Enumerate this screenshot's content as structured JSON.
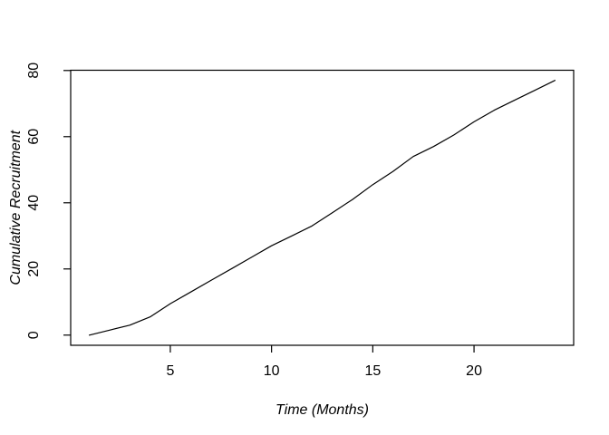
{
  "chart_data": {
    "type": "line",
    "title": "",
    "xlabel": "Time (Months)",
    "ylabel": "Cumulative Recruitment",
    "x": [
      1,
      2,
      3,
      4,
      5,
      6,
      7,
      8,
      9,
      10,
      11,
      12,
      13,
      14,
      15,
      16,
      17,
      18,
      19,
      20,
      21,
      22,
      23,
      24
    ],
    "series": [
      {
        "name": "Cumulative Recruitment",
        "values": [
          0,
          1.5,
          3,
          5.5,
          9.5,
          13,
          16.5,
          20,
          23.5,
          27,
          30,
          33,
          37,
          41,
          45.5,
          49.5,
          54,
          57,
          60.5,
          64.5,
          68,
          71,
          74,
          77
        ]
      }
    ],
    "xticks": [
      5,
      10,
      15,
      20
    ],
    "yticks": [
      0,
      20,
      40,
      60,
      80
    ],
    "xlim": [
      0.08,
      24.92
    ],
    "ylim": [
      -3.08,
      80.08
    ],
    "grid": false,
    "legend": "none",
    "line_color": "#000000",
    "axis_color": "#000000",
    "background_color": "#ffffff"
  }
}
